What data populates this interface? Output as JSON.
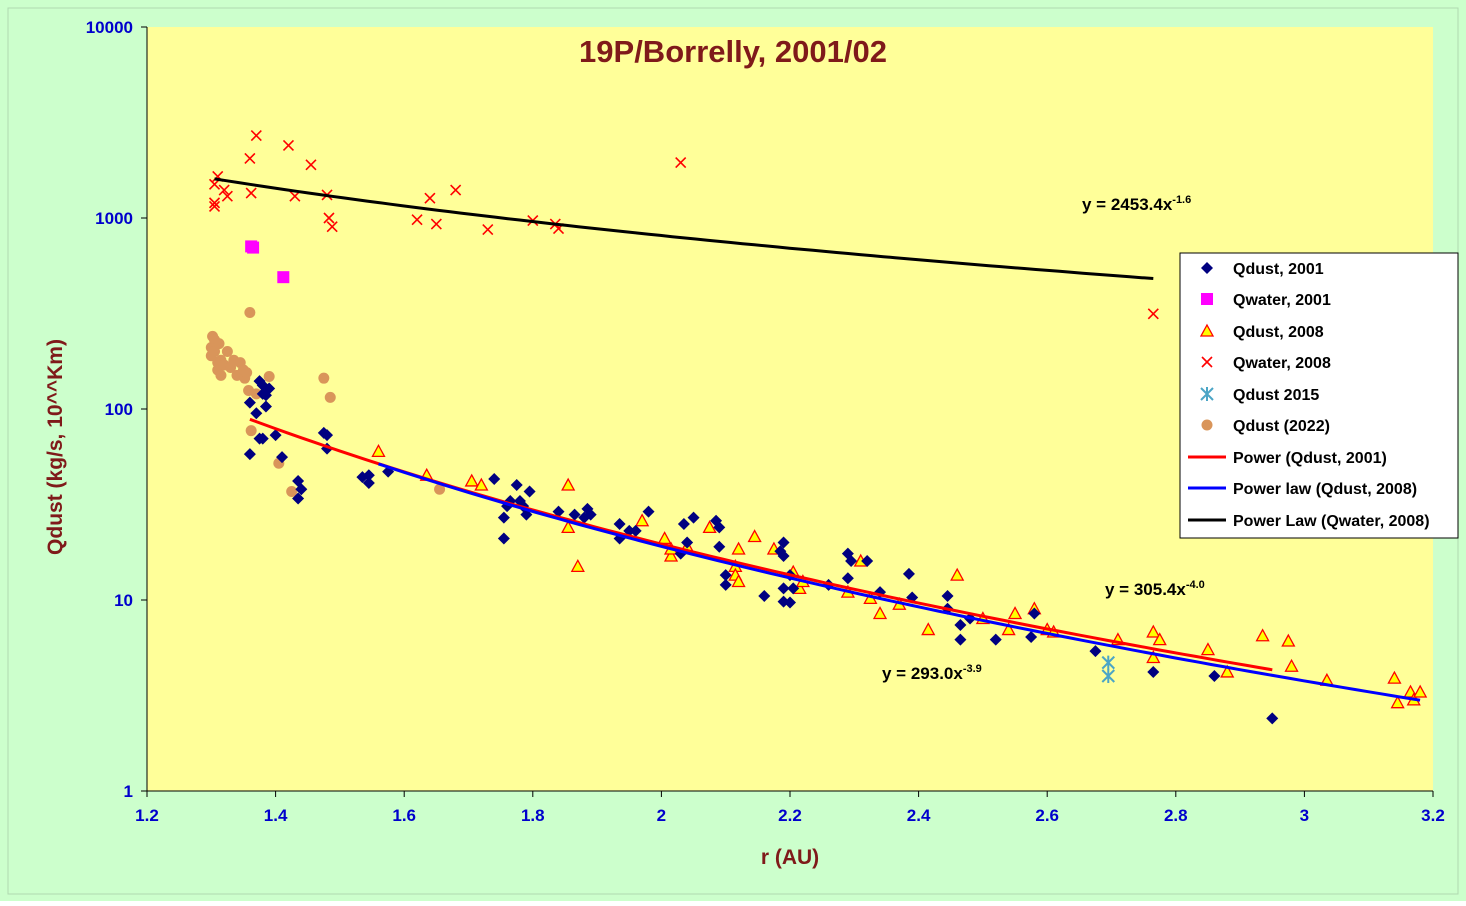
{
  "colors": {
    "background": "#ccffcc",
    "plot_area": "#ffff99",
    "title": "#7f1a1a",
    "axis_title": "#7f1a1a",
    "tick_labels": "#0000cc",
    "qdust_2001": "#000080",
    "qwater_2001": "#ff00ff",
    "qdust_2008_fill": "#ffff00",
    "qdust_2008_edge": "#ff0000",
    "qwater_2008": "#ff0000",
    "qdust_2015": "#4ba5c6",
    "qdust_2022": "#d9955a",
    "fit_qdust_2001": "#ff0000",
    "fit_qdust_2008": "#0000ff",
    "fit_qwater_2008": "#000000"
  },
  "chart_data": {
    "type": "scatter",
    "title": "19P/Borrelly, 2001/02",
    "xlabel": "r (AU)",
    "ylabel": "Qdust (kg/s, 10^^Km)",
    "xlim": [
      1.2,
      3.2
    ],
    "ylim": [
      1,
      10000
    ],
    "yscale": "log",
    "grid": false,
    "legend_position": "right",
    "x_ticks": [
      "1.2",
      "1.4",
      "1.6",
      "1.8",
      "2",
      "2.2",
      "2.4",
      "2.6",
      "2.8",
      "3",
      "3.2"
    ],
    "y_ticks": [
      "1",
      "10",
      "100",
      "1000",
      "10000"
    ],
    "series": [
      {
        "name": "Qdust, 2001",
        "marker": "diamond",
        "points": [
          [
            1.36,
            108
          ],
          [
            1.36,
            58
          ],
          [
            1.37,
            95
          ],
          [
            1.375,
            140
          ],
          [
            1.375,
            70
          ],
          [
            1.38,
            133
          ],
          [
            1.38,
            120
          ],
          [
            1.38,
            70
          ],
          [
            1.385,
            118
          ],
          [
            1.385,
            103
          ],
          [
            1.39,
            128
          ],
          [
            1.4,
            73
          ],
          [
            1.41,
            56
          ],
          [
            1.435,
            42
          ],
          [
            1.435,
            34
          ],
          [
            1.44,
            38
          ],
          [
            1.475,
            75
          ],
          [
            1.48,
            73
          ],
          [
            1.48,
            62
          ],
          [
            1.535,
            44
          ],
          [
            1.545,
            41
          ],
          [
            1.545,
            45
          ],
          [
            1.575,
            47
          ],
          [
            1.74,
            43
          ],
          [
            1.755,
            21
          ],
          [
            1.755,
            27
          ],
          [
            1.76,
            31
          ],
          [
            1.765,
            33
          ],
          [
            1.775,
            40
          ],
          [
            1.78,
            33
          ],
          [
            1.785,
            31
          ],
          [
            1.79,
            28
          ],
          [
            1.795,
            37
          ],
          [
            1.84,
            29
          ],
          [
            1.865,
            28
          ],
          [
            1.88,
            27
          ],
          [
            1.885,
            30
          ],
          [
            1.89,
            28
          ],
          [
            1.935,
            25
          ],
          [
            1.935,
            21
          ],
          [
            1.95,
            23
          ],
          [
            1.96,
            23
          ],
          [
            1.98,
            29
          ],
          [
            2.03,
            17.5
          ],
          [
            2.035,
            25
          ],
          [
            2.04,
            20
          ],
          [
            2.05,
            27
          ],
          [
            2.085,
            26
          ],
          [
            2.09,
            24
          ],
          [
            2.09,
            19
          ],
          [
            2.1,
            13.5
          ],
          [
            2.1,
            12
          ],
          [
            2.16,
            10.5
          ],
          [
            2.185,
            18
          ],
          [
            2.19,
            20
          ],
          [
            2.19,
            17
          ],
          [
            2.19,
            9.8
          ],
          [
            2.19,
            11.5
          ],
          [
            2.2,
            13.5
          ],
          [
            2.2,
            9.7
          ],
          [
            2.205,
            11.5
          ],
          [
            2.26,
            12
          ],
          [
            2.29,
            17.5
          ],
          [
            2.29,
            13
          ],
          [
            2.295,
            16
          ],
          [
            2.32,
            16
          ],
          [
            2.34,
            11
          ],
          [
            2.385,
            13.7
          ],
          [
            2.39,
            10.3
          ],
          [
            2.445,
            10.5
          ],
          [
            2.445,
            9
          ],
          [
            2.465,
            7.4
          ],
          [
            2.465,
            6.2
          ],
          [
            2.48,
            8
          ],
          [
            2.52,
            6.2
          ],
          [
            2.575,
            6.4
          ],
          [
            2.58,
            8.5
          ],
          [
            2.675,
            5.4
          ],
          [
            2.765,
            4.2
          ],
          [
            2.86,
            4
          ],
          [
            2.95,
            2.4
          ]
        ]
      },
      {
        "name": "Qwater, 2001",
        "marker": "square",
        "points": [
          [
            1.362,
            710
          ],
          [
            1.365,
            700
          ],
          [
            1.412,
            490
          ]
        ]
      },
      {
        "name": "Qdust, 2008",
        "marker": "triangle",
        "points": [
          [
            1.56,
            60
          ],
          [
            1.635,
            45
          ],
          [
            1.705,
            42
          ],
          [
            1.72,
            40
          ],
          [
            1.855,
            40
          ],
          [
            1.855,
            24
          ],
          [
            1.87,
            15
          ],
          [
            1.97,
            26
          ],
          [
            2.005,
            21
          ],
          [
            2.015,
            17
          ],
          [
            2.015,
            18.5
          ],
          [
            2.04,
            19
          ],
          [
            2.075,
            24
          ],
          [
            2.115,
            15
          ],
          [
            2.115,
            13.5
          ],
          [
            2.12,
            12.5
          ],
          [
            2.12,
            18.5
          ],
          [
            2.145,
            21.5
          ],
          [
            2.175,
            18.5
          ],
          [
            2.205,
            14
          ],
          [
            2.215,
            11.5
          ],
          [
            2.22,
            12.5
          ],
          [
            2.29,
            11
          ],
          [
            2.31,
            16
          ],
          [
            2.325,
            10.2
          ],
          [
            2.34,
            8.5
          ],
          [
            2.37,
            9.5
          ],
          [
            2.415,
            7
          ],
          [
            2.46,
            13.5
          ],
          [
            2.5,
            8
          ],
          [
            2.54,
            7
          ],
          [
            2.55,
            8.5
          ],
          [
            2.58,
            9
          ],
          [
            2.6,
            7
          ],
          [
            2.61,
            6.8
          ],
          [
            2.71,
            6.2
          ],
          [
            2.765,
            6.8
          ],
          [
            2.765,
            5
          ],
          [
            2.775,
            6.2
          ],
          [
            2.85,
            5.5
          ],
          [
            2.88,
            4.2
          ],
          [
            2.935,
            6.5
          ],
          [
            2.975,
            6.1
          ],
          [
            2.98,
            4.5
          ],
          [
            3.035,
            3.8
          ],
          [
            3.14,
            3.9
          ],
          [
            3.145,
            2.9
          ],
          [
            3.165,
            3.3
          ],
          [
            3.17,
            3
          ],
          [
            3.18,
            3.3
          ]
        ]
      },
      {
        "name": "Qwater, 2008",
        "marker": "x",
        "points": [
          [
            1.305,
            1500
          ],
          [
            1.305,
            1200
          ],
          [
            1.305,
            1150
          ],
          [
            1.31,
            1650
          ],
          [
            1.32,
            1400
          ],
          [
            1.325,
            1300
          ],
          [
            1.36,
            2050
          ],
          [
            1.362,
            1350
          ],
          [
            1.37,
            2700
          ],
          [
            1.42,
            2400
          ],
          [
            1.43,
            1300
          ],
          [
            1.455,
            1900
          ],
          [
            1.48,
            1320
          ],
          [
            1.483,
            1000
          ],
          [
            1.488,
            900
          ],
          [
            1.62,
            980
          ],
          [
            1.64,
            1270
          ],
          [
            1.65,
            930
          ],
          [
            1.68,
            1400
          ],
          [
            1.73,
            870
          ],
          [
            1.8,
            970
          ],
          [
            1.835,
            930
          ],
          [
            1.84,
            880
          ],
          [
            2.03,
            1950
          ],
          [
            2.765,
            315
          ]
        ]
      },
      {
        "name": "Qdust 2015",
        "marker": "asterisk",
        "points": [
          [
            2.695,
            4.7
          ],
          [
            2.695,
            4.0
          ]
        ]
      },
      {
        "name": "Qdust (2022)",
        "marker": "circle",
        "points": [
          [
            1.3,
            190
          ],
          [
            1.3,
            210
          ],
          [
            1.302,
            240
          ],
          [
            1.305,
            230
          ],
          [
            1.305,
            200
          ],
          [
            1.31,
            175
          ],
          [
            1.31,
            160
          ],
          [
            1.312,
            220
          ],
          [
            1.315,
            180
          ],
          [
            1.315,
            150
          ],
          [
            1.32,
            170
          ],
          [
            1.325,
            200
          ],
          [
            1.33,
            165
          ],
          [
            1.335,
            180
          ],
          [
            1.34,
            150
          ],
          [
            1.345,
            175
          ],
          [
            1.35,
            160
          ],
          [
            1.352,
            145
          ],
          [
            1.355,
            155
          ],
          [
            1.358,
            125
          ],
          [
            1.36,
            320
          ],
          [
            1.362,
            77
          ],
          [
            1.37,
            120
          ],
          [
            1.39,
            148
          ],
          [
            1.405,
            52
          ],
          [
            1.425,
            37
          ],
          [
            1.475,
            145
          ],
          [
            1.485,
            115
          ],
          [
            1.655,
            38
          ]
        ]
      },
      {
        "name": "Power (Qdust, 2001)",
        "type": "line",
        "equation": "y = 293.0x",
        "exponent": "-3.9",
        "coef": 293.0,
        "power": -3.9,
        "x_range": [
          1.36,
          2.95
        ]
      },
      {
        "name": "Power law (Qdust, 2008)",
        "type": "line",
        "equation": "y = 305.4x",
        "exponent": "-4.0",
        "coef": 305.4,
        "power": -4.0,
        "x_range": [
          1.56,
          3.18
        ]
      },
      {
        "name": "Power Law (Qwater, 2008)",
        "type": "line",
        "equation": "y = 2453.4x",
        "exponent": "-1.6",
        "coef": 2453.4,
        "power": -1.6,
        "x_range": [
          1.305,
          2.765
        ]
      }
    ]
  }
}
